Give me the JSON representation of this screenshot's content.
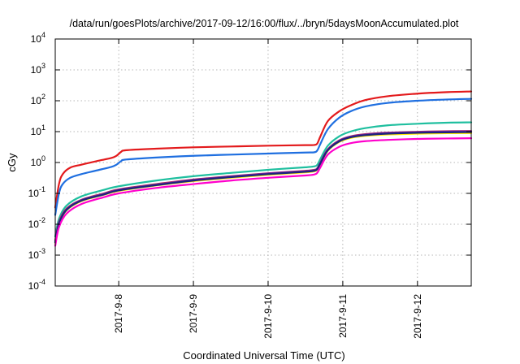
{
  "chart_data": {
    "type": "line",
    "title": "/data/run/goesPlots/archive/2017-09-12/16:00/flux/../bryn/5daysMoonAccumulated.plot",
    "xlabel": "Coordinated Universal Time (UTC)",
    "ylabel": "cGy",
    "yscale": "log",
    "ylim": [
      0.0001,
      10000
    ],
    "xlim": [
      7.15,
      12.72
    ],
    "grid": true,
    "x_ticks": [
      {
        "value": 8,
        "label": "2017-9-8"
      },
      {
        "value": 9,
        "label": "2017-9-9"
      },
      {
        "value": 10,
        "label": "2017-9-10"
      },
      {
        "value": 11,
        "label": "2017-9-11"
      },
      {
        "value": 12,
        "label": "2017-9-12"
      }
    ],
    "y_ticks": [
      {
        "value": 0.0001,
        "base": "10",
        "exp": "-4"
      },
      {
        "value": 0.001,
        "base": "10",
        "exp": "-3"
      },
      {
        "value": 0.01,
        "base": "10",
        "exp": "-2"
      },
      {
        "value": 0.1,
        "base": "10",
        "exp": "-1"
      },
      {
        "value": 1,
        "base": "10",
        "exp": "0"
      },
      {
        "value": 10,
        "base": "10",
        "exp": "1"
      },
      {
        "value": 100,
        "base": "10",
        "exp": "2"
      },
      {
        "value": 1000,
        "base": "10",
        "exp": "3"
      },
      {
        "value": 10000,
        "base": "10",
        "exp": "4"
      }
    ],
    "series": [
      {
        "color": "#e31a1c",
        "x": [
          7.15,
          7.2,
          7.25,
          7.35,
          7.5,
          7.7,
          7.9,
          7.97,
          8.03,
          8.1,
          8.5,
          9.0,
          9.5,
          10.0,
          10.5,
          10.62,
          10.66,
          10.7,
          10.8,
          10.95,
          11.1,
          11.3,
          11.6,
          12.0,
          12.4,
          12.72
        ],
        "y": [
          0.035,
          0.2,
          0.42,
          0.68,
          0.85,
          1.1,
          1.4,
          1.65,
          2.2,
          2.5,
          2.8,
          3.1,
          3.3,
          3.5,
          3.65,
          3.7,
          4.2,
          7,
          22,
          45,
          70,
          105,
          140,
          170,
          190,
          200
        ]
      },
      {
        "color": "#1f6fe0",
        "x": [
          7.15,
          7.2,
          7.25,
          7.35,
          7.5,
          7.7,
          7.9,
          7.97,
          8.03,
          8.1,
          8.5,
          9.0,
          9.5,
          10.0,
          10.5,
          10.62,
          10.66,
          10.7,
          10.8,
          10.95,
          11.1,
          11.3,
          11.6,
          12.0,
          12.4,
          12.72
        ],
        "y": [
          0.02,
          0.1,
          0.2,
          0.32,
          0.42,
          0.55,
          0.72,
          0.85,
          1.1,
          1.25,
          1.45,
          1.65,
          1.8,
          1.95,
          2.1,
          2.15,
          2.5,
          4,
          12,
          28,
          45,
          65,
          85,
          100,
          110,
          115
        ]
      },
      {
        "color": "#1fbf9f",
        "x": [
          7.15,
          7.2,
          7.3,
          7.5,
          7.8,
          8.0,
          8.5,
          9.0,
          9.5,
          10.0,
          10.5,
          10.62,
          10.66,
          10.7,
          10.8,
          10.95,
          11.1,
          11.3,
          11.6,
          12.0,
          12.4,
          12.72
        ],
        "y": [
          0.004,
          0.015,
          0.04,
          0.08,
          0.13,
          0.17,
          0.26,
          0.36,
          0.46,
          0.58,
          0.7,
          0.75,
          0.85,
          1.3,
          3.5,
          7,
          10,
          13,
          16,
          18,
          19.5,
          20
        ]
      },
      {
        "color": "#ffe600",
        "x": [
          7.15,
          7.2,
          7.3,
          7.5,
          7.8,
          8.0,
          8.5,
          9.0,
          9.5,
          10.0,
          10.5,
          10.62,
          10.66,
          10.7,
          10.8,
          10.95,
          11.1,
          11.3,
          11.6,
          12.0,
          12.4,
          12.72
        ],
        "y": [
          0.0025,
          0.01,
          0.028,
          0.056,
          0.09,
          0.12,
          0.18,
          0.25,
          0.32,
          0.4,
          0.48,
          0.52,
          0.6,
          0.9,
          2.4,
          4.6,
          6.2,
          7.3,
          8.1,
          8.6,
          8.9,
          9
        ]
      },
      {
        "color": "#b03060",
        "x": [
          7.15,
          7.2,
          7.3,
          7.5,
          7.8,
          8.0,
          8.5,
          9.0,
          9.5,
          10.0,
          10.5,
          10.62,
          10.66,
          10.7,
          10.8,
          10.95,
          11.1,
          11.3,
          11.6,
          12.0,
          12.4,
          12.72
        ],
        "y": [
          0.003,
          0.012,
          0.032,
          0.062,
          0.1,
          0.135,
          0.2,
          0.28,
          0.36,
          0.45,
          0.54,
          0.58,
          0.66,
          1.0,
          2.7,
          5.2,
          7.0,
          8.3,
          9.3,
          9.9,
          10.3,
          10.5
        ]
      },
      {
        "color": "#7b1fa2",
        "x": [
          7.15,
          7.2,
          7.3,
          7.5,
          7.8,
          8.0,
          8.5,
          9.0,
          9.5,
          10.0,
          10.5,
          10.62,
          10.66,
          10.7,
          10.8,
          10.95,
          11.1,
          11.3,
          11.6,
          12.0,
          12.4,
          12.72
        ],
        "y": [
          0.0028,
          0.011,
          0.03,
          0.06,
          0.095,
          0.13,
          0.19,
          0.27,
          0.35,
          0.44,
          0.52,
          0.56,
          0.64,
          0.97,
          2.6,
          5.0,
          6.8,
          8.0,
          9.0,
          9.6,
          10.0,
          10.2
        ]
      },
      {
        "color": "#1a237e",
        "x": [
          7.15,
          7.2,
          7.3,
          7.5,
          7.8,
          8.0,
          8.5,
          9.0,
          9.5,
          10.0,
          10.5,
          10.62,
          10.66,
          10.7,
          10.8,
          10.95,
          11.1,
          11.3,
          11.6,
          12.0,
          12.4,
          12.72
        ],
        "y": [
          0.0026,
          0.0105,
          0.029,
          0.058,
          0.092,
          0.125,
          0.185,
          0.26,
          0.335,
          0.42,
          0.5,
          0.54,
          0.62,
          0.93,
          2.5,
          4.8,
          6.5,
          7.7,
          8.6,
          9.2,
          9.5,
          9.7
        ]
      },
      {
        "color": "#ff00cc",
        "x": [
          7.15,
          7.2,
          7.3,
          7.5,
          7.8,
          8.0,
          8.5,
          9.0,
          9.5,
          10.0,
          10.5,
          10.62,
          10.66,
          10.7,
          10.8,
          10.95,
          11.1,
          11.3,
          11.6,
          12.0,
          12.4,
          12.72
        ],
        "y": [
          0.002,
          0.008,
          0.022,
          0.045,
          0.075,
          0.1,
          0.15,
          0.2,
          0.26,
          0.32,
          0.38,
          0.41,
          0.47,
          0.7,
          1.8,
          3.2,
          4.2,
          4.9,
          5.4,
          5.8,
          6.0,
          6.1
        ]
      }
    ]
  }
}
